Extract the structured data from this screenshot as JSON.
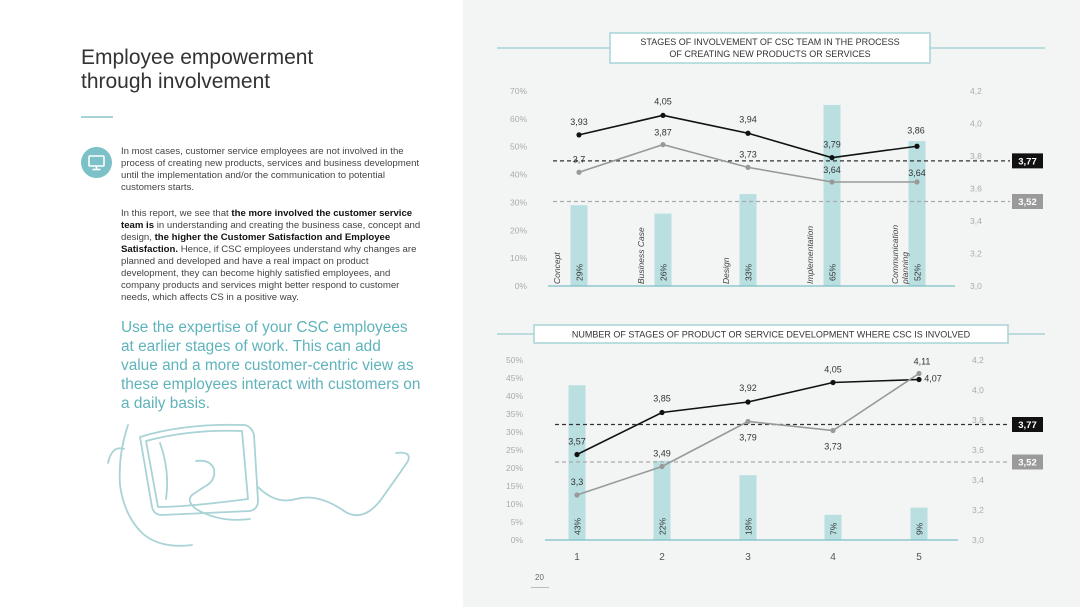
{
  "page": {
    "title_line1": "Employee empowerment",
    "title_line2": "through involvement",
    "para1": "In most cases, customer service employees are not involved in the process of creating new products, services and business development until the implementation and/or the communication to potential customers starts.",
    "para2_intro": "In this report, we see that ",
    "para2_bold1": "the more involved the customer service team is",
    "para2_mid": " in understanding and creating the business case, concept and design, ",
    "para2_bold2": "the higher the Customer Satisfaction and Employee Satisfaction.",
    "para2_rest": " Hence, if CSC employees understand why changes are planned and developed and have a real impact on product development, they can become highly satisfied employees, and company products and services might better respond to customer needs, which affects CS in a positive way.",
    "quote": "Use the expertise of your CSC employees at earlier stages of work. This can add value and a more customer-centric view as these employees interact with customers on a daily basis.",
    "page_number": "20",
    "icon": "monitor-icon",
    "accent_color": "#7cc1c7",
    "bar_color": "#b9dfe1",
    "line_dark_color": "#111111",
    "line_gray_color": "#999999"
  },
  "chart_data": [
    {
      "type": "bar+line",
      "title_line1": "STAGES OF INVOLVEMENT OF CSC TEAM IN THE PROCESS",
      "title_line2": "OF CREATING NEW PRODUCTS OR SERVICES",
      "categories": [
        "Concept",
        "Business Case",
        "Design",
        "Implementation",
        "Communication planning"
      ],
      "category_labels": [
        [
          "Concept"
        ],
        [
          "Business Case"
        ],
        [
          "Design"
        ],
        [
          "Implementation"
        ],
        [
          "Communication",
          "planning"
        ]
      ],
      "bars": {
        "values": [
          29,
          26,
          33,
          65,
          52
        ],
        "labels": [
          "29%",
          "26%",
          "33%",
          "65%",
          "52%"
        ]
      },
      "y_left": {
        "min": 0,
        "max": 70,
        "ticks": [
          "0%",
          "10%",
          "20%",
          "30%",
          "40%",
          "50%",
          "60%",
          "70%"
        ]
      },
      "y_right": {
        "min": 3.0,
        "max": 4.2,
        "ticks": [
          "3,0",
          "3,2",
          "3,4",
          "3,6",
          "3,8",
          "4,0",
          "4,2"
        ]
      },
      "series": [
        {
          "values": [
            3.93,
            4.05,
            3.94,
            3.79,
            3.86
          ],
          "labels": [
            "3,93",
            "4,05",
            "3,94",
            "3,79",
            "3,86"
          ],
          "color": "#111111"
        },
        {
          "values": [
            3.7,
            3.87,
            3.73,
            3.64,
            3.64
          ],
          "labels": [
            "3,7",
            "3,87",
            "3,73",
            "3,64",
            "3,64"
          ],
          "color": "#999999"
        }
      ],
      "reference_lines": [
        {
          "value": 3.77,
          "label": "3,77",
          "color": "#111111"
        },
        {
          "value": 3.52,
          "label": "3,52",
          "color": "#999999"
        }
      ]
    },
    {
      "type": "bar+line",
      "title_line1": "NUMBER OF STAGES OF PRODUCT OR SERVICE DEVELOPMENT WHERE CSC IS INVOLVED",
      "categories": [
        "1",
        "2",
        "3",
        "4",
        "5"
      ],
      "bars": {
        "values": [
          43,
          22,
          18,
          7,
          9
        ],
        "labels": [
          "43%",
          "22%",
          "18%",
          "7%",
          "9%"
        ]
      },
      "y_left": {
        "min": 0,
        "max": 50,
        "ticks": [
          "0%",
          "5%",
          "10%",
          "15%",
          "20%",
          "25%",
          "30%",
          "35%",
          "40%",
          "45%",
          "50%"
        ]
      },
      "y_right": {
        "min": 3.0,
        "max": 4.2,
        "ticks": [
          "3,0",
          "3,2",
          "3,4",
          "3,6",
          "3,8",
          "4,0",
          "4,2"
        ]
      },
      "series": [
        {
          "values": [
            3.57,
            3.85,
            3.92,
            4.05,
            4.07
          ],
          "labels": [
            "3,57",
            "3,85",
            "3,92",
            "4,05",
            "4,07"
          ],
          "color": "#111111"
        },
        {
          "values": [
            3.3,
            3.49,
            3.79,
            3.73,
            4.11
          ],
          "labels": [
            "3,3",
            "3,49",
            "3,79",
            "3,73",
            "4,11"
          ],
          "color": "#999999"
        }
      ],
      "reference_lines": [
        {
          "value": 3.77,
          "label": "3,77",
          "color": "#111111"
        },
        {
          "value": 3.52,
          "label": "3,52",
          "color": "#999999"
        }
      ]
    }
  ]
}
